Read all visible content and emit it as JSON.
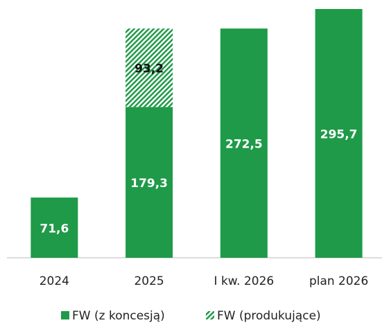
{
  "chart_data": {
    "type": "bar",
    "stacked": true,
    "categories": [
      "2024",
      "2025",
      "I kw. 2026",
      "plan 2026"
    ],
    "series": [
      {
        "name": "FW (z koncesją)",
        "color": "#1f9a48",
        "values": [
          71.6,
          179.3,
          272.5,
          295.7
        ],
        "value_labels": [
          "71,6",
          "179,3",
          "272,5",
          "295,7"
        ]
      },
      {
        "name": "FW (produkujące)",
        "color": "#1f9a48",
        "pattern": "hatch",
        "values": [
          null,
          93.2,
          null,
          null
        ],
        "value_labels": [
          null,
          "93,2",
          null,
          null
        ]
      }
    ],
    "legend": "bottom"
  }
}
